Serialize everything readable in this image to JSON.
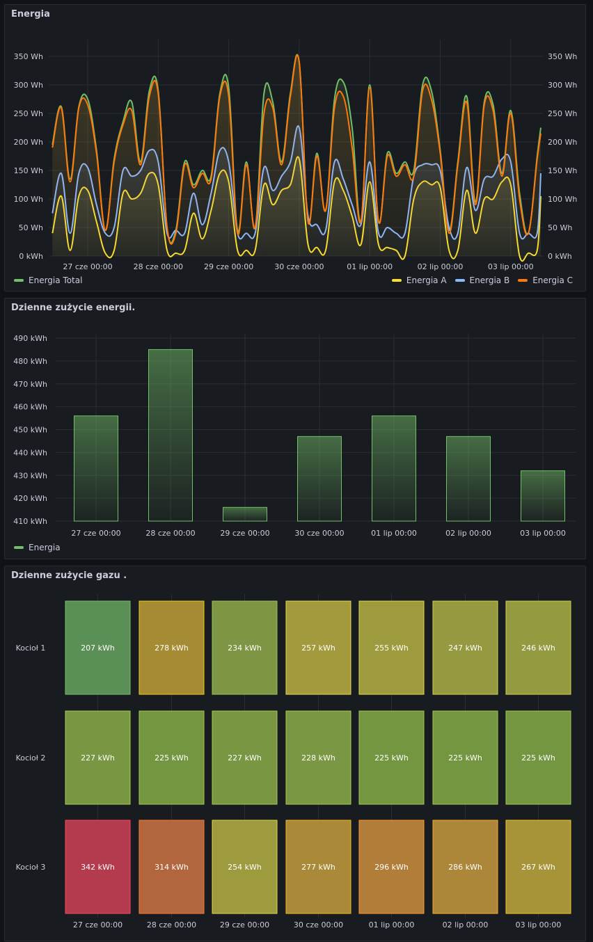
{
  "panels": {
    "energia": {
      "title": "Energia",
      "legend_left": [
        {
          "label": "Energia Total",
          "color": "#73bf69"
        }
      ],
      "legend_right": [
        {
          "label": "Energia A",
          "color": "#fade2a"
        },
        {
          "label": "Energia B",
          "color": "#8ab8ff"
        },
        {
          "label": "Energia C",
          "color": "#ff780a"
        }
      ]
    },
    "daily_energy": {
      "title": "Dzienne zużycie energii.",
      "legend": [
        {
          "label": "Energia",
          "color": "#73bf69"
        }
      ]
    },
    "daily_gas": {
      "title": "Dzienne zużycie gazu ."
    }
  },
  "chart_data": [
    {
      "type": "line",
      "x_start": "26 cze 12:00",
      "x_interval_hours": 3,
      "x_ticks": [
        "27 cze 00:00",
        "28 cze 00:00",
        "29 cze 00:00",
        "30 cze 00:00",
        "01 lip 00:00",
        "02 lip 00:00",
        "03 lip 00:00"
      ],
      "y_ticks": [
        "0 kWh",
        "50 Wh",
        "100 Wh",
        "150 Wh",
        "200 Wh",
        "250 Wh",
        "300 Wh",
        "350 Wh"
      ],
      "ylim": [
        0,
        350
      ],
      "unit": "Wh",
      "grid": true,
      "series": [
        {
          "name": "Energia Total",
          "color": "#73bf69",
          "values": [
            195,
            262,
            135,
            262,
            275,
            185,
            45,
            170,
            235,
            270,
            165,
            290,
            290,
            50,
            45,
            165,
            125,
            150,
            140,
            285,
            295,
            45,
            165,
            50,
            285,
            270,
            165,
            285,
            340,
            60,
            180,
            80,
            275,
            305,
            225,
            60,
            300,
            60,
            180,
            145,
            165,
            150,
            300,
            290,
            185,
            45,
            165,
            280,
            95,
            270,
            265,
            145,
            255,
            110,
            40,
            175,
            225
          ]
        },
        {
          "name": "Energia A",
          "color": "#fade2a",
          "values": [
            40,
            105,
            10,
            105,
            115,
            60,
            5,
            10,
            110,
            100,
            110,
            145,
            125,
            10,
            5,
            10,
            75,
            30,
            80,
            145,
            130,
            10,
            10,
            10,
            125,
            90,
            115,
            125,
            170,
            20,
            15,
            10,
            130,
            115,
            70,
            20,
            130,
            20,
            15,
            10,
            0,
            100,
            130,
            125,
            120,
            10,
            10,
            115,
            40,
            100,
            100,
            130,
            125,
            0,
            5,
            10,
            105
          ]
        },
        {
          "name": "Energia B",
          "color": "#8ab8ff",
          "values": [
            75,
            145,
            40,
            145,
            155,
            90,
            40,
            50,
            150,
            140,
            150,
            185,
            165,
            40,
            45,
            40,
            110,
            55,
            110,
            185,
            165,
            40,
            40,
            40,
            155,
            115,
            140,
            165,
            225,
            70,
            55,
            45,
            165,
            135,
            90,
            55,
            165,
            40,
            50,
            40,
            40,
            140,
            160,
            160,
            150,
            50,
            40,
            155,
            80,
            135,
            140,
            170,
            165,
            40,
            40,
            40,
            145
          ]
        },
        {
          "name": "Energia C",
          "color": "#ff780a",
          "values": [
            190,
            260,
            130,
            260,
            265,
            180,
            45,
            165,
            230,
            255,
            160,
            280,
            285,
            50,
            40,
            160,
            120,
            145,
            135,
            280,
            280,
            40,
            160,
            50,
            250,
            260,
            160,
            280,
            340,
            60,
            175,
            80,
            260,
            280,
            190,
            60,
            295,
            60,
            175,
            140,
            160,
            140,
            290,
            275,
            180,
            40,
            160,
            270,
            90,
            265,
            255,
            140,
            250,
            100,
            40,
            170,
            215
          ]
        }
      ]
    },
    {
      "type": "bar",
      "categories": [
        "27 cze 00:00",
        "28 cze 00:00",
        "29 cze 00:00",
        "30 cze 00:00",
        "01 lip 00:00",
        "02 lip 00:00",
        "03 lip 00:00"
      ],
      "values": [
        456,
        485,
        416,
        447,
        456,
        447,
        432
      ],
      "y_ticks": [
        "410 kWh",
        "420 kWh",
        "430 kWh",
        "440 kWh",
        "450 kWh",
        "460 kWh",
        "470 kWh",
        "480 kWh",
        "490 kWh"
      ],
      "ylim": [
        410,
        490
      ],
      "series_name": "Energia",
      "color": "#73bf69",
      "grid": true
    },
    {
      "type": "heatmap",
      "columns": [
        "27 cze 00:00",
        "28 cze 00:00",
        "29 cze 00:00",
        "30 cze 00:00",
        "01 lip 00:00",
        "02 lip 00:00",
        "03 lip 00:00"
      ],
      "rows": [
        {
          "name": "Kocioł 1",
          "values": [
            207,
            278,
            234,
            257,
            255,
            247,
            246
          ],
          "labels": [
            "207 kWh",
            "278 kWh",
            "234 kWh",
            "257 kWh",
            "255 kWh",
            "247 kWh",
            "246 kWh"
          ],
          "colors": [
            "#5a8f55",
            "#a68b35",
            "#7e9644",
            "#a39a3e",
            "#9e9a3e",
            "#959a40",
            "#939a40"
          ],
          "borders": [
            "#73bf69",
            "#f2cc0c",
            "#96c55a",
            "#e8d84a",
            "#e0d84a",
            "#d2d34a",
            "#cfd24a"
          ]
        },
        {
          "name": "Kocioł 2",
          "values": [
            227,
            225,
            227,
            228,
            225,
            225,
            225
          ],
          "labels": [
            "227 kWh",
            "225 kWh",
            "227 kWh",
            "228 kWh",
            "225 kWh",
            "225 kWh",
            "225 kWh"
          ],
          "colors": [
            "#799743",
            "#759641",
            "#799743",
            "#7a9743",
            "#759641",
            "#759641",
            "#759641"
          ],
          "borders": [
            "#a8cc4f",
            "#9fc84f",
            "#a8cc4f",
            "#aacd4f",
            "#9fc84f",
            "#9fc84f",
            "#9fc84f"
          ]
        },
        {
          "name": "Kocioł 3",
          "values": [
            342,
            314,
            254,
            277,
            296,
            286,
            267
          ],
          "labels": [
            "342 kWh",
            "314 kWh",
            "254 kWh",
            "277 kWh",
            "296 kWh",
            "286 kWh",
            "267 kWh"
          ],
          "colors": [
            "#b43a4e",
            "#b2663e",
            "#9e9a3e",
            "#aa8a38",
            "#b07e38",
            "#ac8639",
            "#a89438"
          ],
          "borders": [
            "#f2495c",
            "#ff7830",
            "#e0d84a",
            "#f2b81c",
            "#ff9830",
            "#f7aa2a",
            "#f2c61c"
          ]
        }
      ]
    }
  ]
}
